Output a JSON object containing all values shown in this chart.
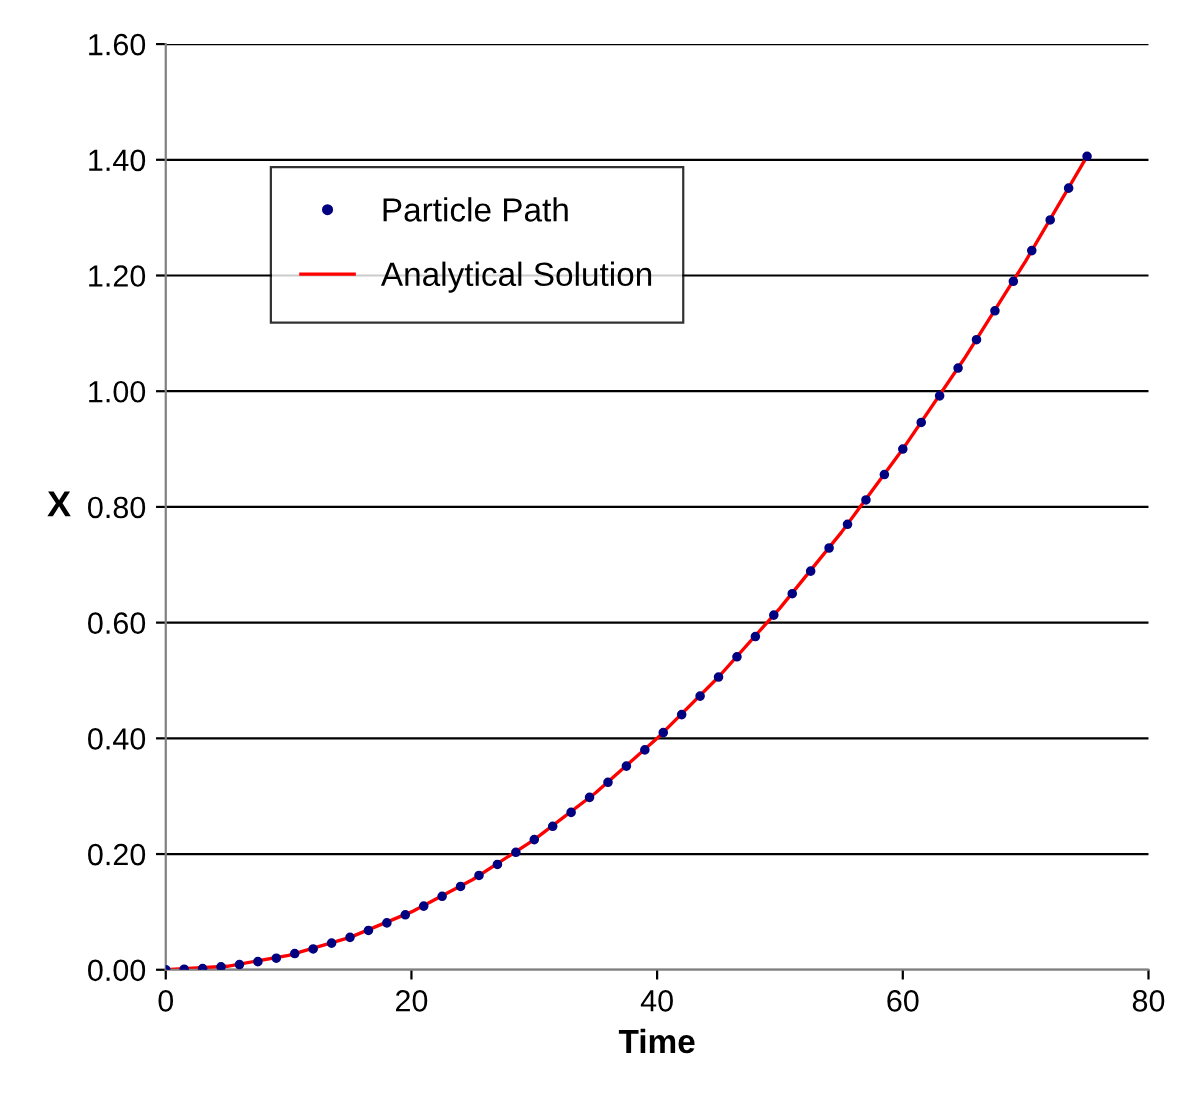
{
  "chart_data": {
    "type": "scatter",
    "xlabel": "Time",
    "ylabel": "X",
    "xlim": [
      0,
      80
    ],
    "ylim": [
      0,
      1.6
    ],
    "xticks": [
      0,
      20,
      40,
      60,
      80
    ],
    "yticks": [
      {
        "value": 0,
        "label": "0.00"
      },
      {
        "value": 0.2,
        "label": "0.20"
      },
      {
        "value": 0.4,
        "label": "0.40"
      },
      {
        "value": 0.6,
        "label": "0.60"
      },
      {
        "value": 0.8,
        "label": "0.80"
      },
      {
        "value": 1.0,
        "label": "1.00"
      },
      {
        "value": 1.2,
        "label": "1.20"
      },
      {
        "value": 1.4,
        "label": "1.40"
      },
      {
        "value": 1.6,
        "label": "1.60"
      }
    ],
    "grid": "y",
    "legend": "top left",
    "series": [
      {
        "name": "Particle Path",
        "marker": "circle",
        "color": "#000080",
        "x": [
          0,
          1.5,
          3,
          4.5,
          6,
          7.5,
          9,
          10.5,
          12,
          13.5,
          15,
          16.5,
          18,
          19.5,
          21,
          22.5,
          24,
          25.5,
          27,
          28.5,
          30,
          31.5,
          33,
          34.5,
          36,
          37.5,
          39,
          40.5,
          42,
          43.5,
          45,
          46.5,
          48,
          49.5,
          51,
          52.5,
          54,
          55.5,
          57,
          58.5,
          60,
          61.5,
          63,
          64.5,
          66,
          67.5,
          69,
          70.5,
          72,
          73.5,
          75
        ],
        "values": [
          0,
          0.001,
          0.002,
          0.005,
          0.009,
          0.014,
          0.02,
          0.028,
          0.036,
          0.046,
          0.056,
          0.068,
          0.081,
          0.095,
          0.11,
          0.127,
          0.144,
          0.163,
          0.182,
          0.203,
          0.225,
          0.248,
          0.272,
          0.298,
          0.324,
          0.352,
          0.38,
          0.41,
          0.441,
          0.473,
          0.506,
          0.541,
          0.576,
          0.613,
          0.65,
          0.689,
          0.729,
          0.77,
          0.812,
          0.856,
          0.9,
          0.946,
          0.992,
          1.04,
          1.089,
          1.139,
          1.19,
          1.243,
          1.296,
          1.351,
          1.406
        ]
      },
      {
        "name": "Analytical Solution",
        "type": "line",
        "line_style": "solid",
        "color": "#ff0000",
        "x": [
          0,
          5,
          10,
          15,
          20,
          25,
          30,
          35,
          40,
          45,
          50,
          55,
          60,
          65,
          70,
          75
        ],
        "values": [
          0,
          0.006,
          0.025,
          0.056,
          0.1,
          0.156,
          0.225,
          0.306,
          0.4,
          0.506,
          0.625,
          0.756,
          0.9,
          1.056,
          1.225,
          1.406
        ]
      }
    ]
  }
}
